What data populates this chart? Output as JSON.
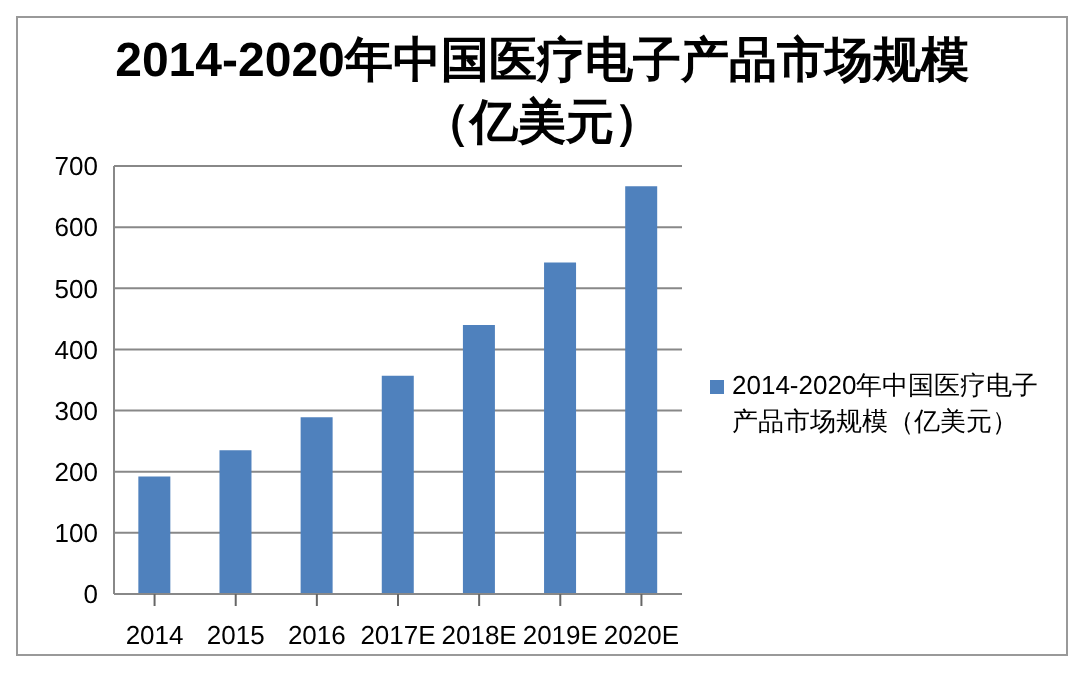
{
  "chart_data": {
    "type": "bar",
    "title": "2014-2020年中国医疗电子产品市场规模（亿美元）",
    "categories": [
      "2014",
      "2015",
      "2016",
      "2017E",
      "2018E",
      "2019E",
      "2020E"
    ],
    "series": [
      {
        "name": "2014-2020年中国医疗电子产品市场规模（亿美元）",
        "color": "#4f81bd",
        "values": [
          192,
          235,
          289,
          357,
          440,
          542,
          667
        ]
      }
    ],
    "ylim": [
      0,
      700
    ],
    "yticks": [
      0,
      100,
      200,
      300,
      400,
      500,
      600,
      700
    ],
    "grid": "y",
    "legend": "right"
  }
}
